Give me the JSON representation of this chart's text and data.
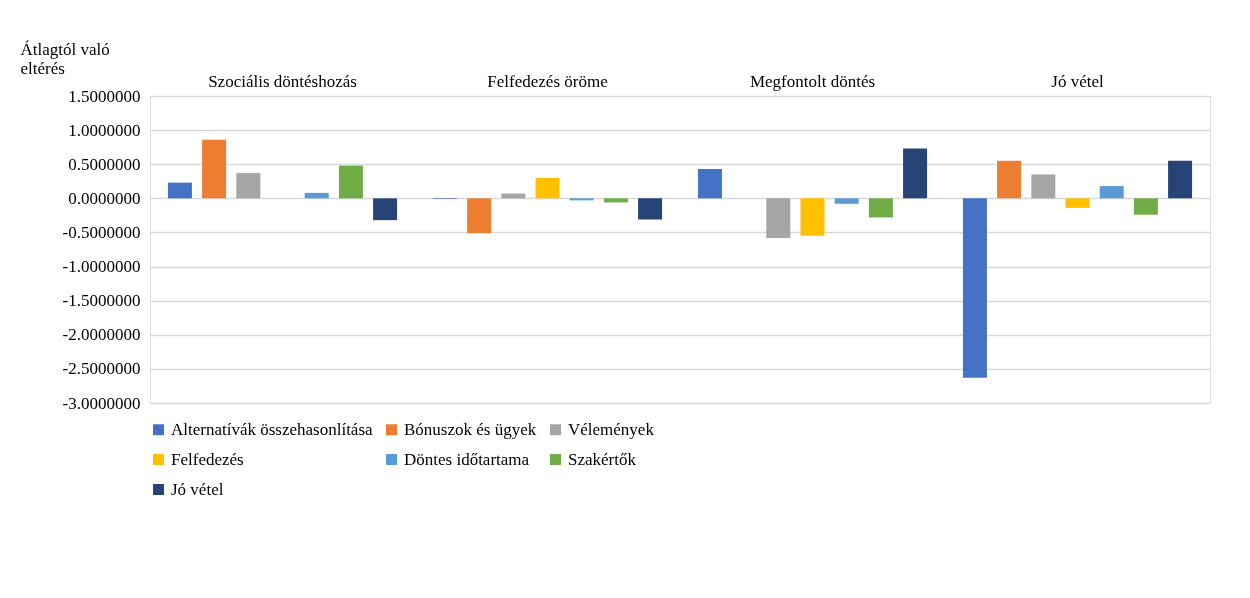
{
  "chart_data": {
    "type": "bar",
    "ylabel": "Átlagtól való eltérés",
    "categories": [
      "Szociális döntéshozás",
      "Felfedezés öröme",
      "Megfontolt döntés",
      "Jó vétel"
    ],
    "series": [
      {
        "name": "Alternatívák összehasonlítása",
        "color": "#4472c4",
        "values": [
          0.23,
          -0.01,
          0.43,
          -2.63
        ]
      },
      {
        "name": "Bónuszok és ügyek",
        "color": "#ed7d31",
        "values": [
          0.86,
          -0.51,
          0.0,
          0.55
        ]
      },
      {
        "name": "Vélemények",
        "color": "#a5a5a5",
        "values": [
          0.37,
          0.07,
          -0.58,
          0.35
        ]
      },
      {
        "name": "Felfedezés",
        "color": "#ffc000",
        "values": [
          0.0,
          0.3,
          -0.55,
          -0.14
        ]
      },
      {
        "name": "Döntes időtartama",
        "color": "#5b9bd5",
        "values": [
          0.08,
          -0.03,
          -0.08,
          0.18
        ]
      },
      {
        "name": "Szakértők",
        "color": "#70ad47",
        "values": [
          0.48,
          -0.06,
          -0.28,
          -0.24
        ]
      },
      {
        "name": "Jó vétel",
        "color": "#264478",
        "values": [
          -0.32,
          -0.31,
          0.73,
          0.55
        ]
      }
    ],
    "ylim": [
      -3.0,
      1.5
    ],
    "yticks": [
      {
        "value": 1.5,
        "label": "1.5000000"
      },
      {
        "value": 1.0,
        "label": "1.0000000"
      },
      {
        "value": 0.5,
        "label": "0.5000000"
      },
      {
        "value": 0.0,
        "label": "0.0000000"
      },
      {
        "value": -0.5,
        "label": "-0.5000000"
      },
      {
        "value": -1.0,
        "label": "-1.0000000"
      },
      {
        "value": -1.5,
        "label": "-1.5000000"
      },
      {
        "value": -2.0,
        "label": "-2.0000000"
      },
      {
        "value": -2.5,
        "label": "-2.5000000"
      },
      {
        "value": -3.0,
        "label": "-3.0000000"
      }
    ],
    "grid": "y",
    "legend": "bottom"
  }
}
